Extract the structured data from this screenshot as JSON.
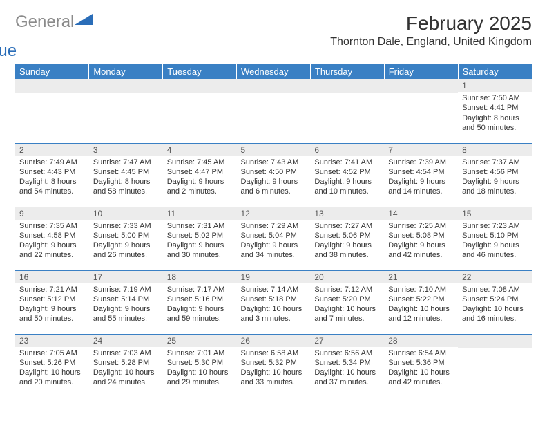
{
  "logo": {
    "general": "General",
    "blue": "Blue"
  },
  "title": "February 2025",
  "location": "Thornton Dale, England, United Kingdom",
  "colors": {
    "header_bg": "#3a80c4",
    "header_text": "#ffffff",
    "daynum_bg": "#ececec",
    "border": "#3a80c4",
    "logo_gray": "#8a8a8a",
    "logo_blue": "#2a6db8"
  },
  "day_headers": [
    "Sunday",
    "Monday",
    "Tuesday",
    "Wednesday",
    "Thursday",
    "Friday",
    "Saturday"
  ],
  "weeks": [
    [
      null,
      null,
      null,
      null,
      null,
      null,
      {
        "n": "1",
        "sr": "Sunrise: 7:50 AM",
        "ss": "Sunset: 4:41 PM",
        "d1": "Daylight: 8 hours",
        "d2": "and 50 minutes."
      }
    ],
    [
      {
        "n": "2",
        "sr": "Sunrise: 7:49 AM",
        "ss": "Sunset: 4:43 PM",
        "d1": "Daylight: 8 hours",
        "d2": "and 54 minutes."
      },
      {
        "n": "3",
        "sr": "Sunrise: 7:47 AM",
        "ss": "Sunset: 4:45 PM",
        "d1": "Daylight: 8 hours",
        "d2": "and 58 minutes."
      },
      {
        "n": "4",
        "sr": "Sunrise: 7:45 AM",
        "ss": "Sunset: 4:47 PM",
        "d1": "Daylight: 9 hours",
        "d2": "and 2 minutes."
      },
      {
        "n": "5",
        "sr": "Sunrise: 7:43 AM",
        "ss": "Sunset: 4:50 PM",
        "d1": "Daylight: 9 hours",
        "d2": "and 6 minutes."
      },
      {
        "n": "6",
        "sr": "Sunrise: 7:41 AM",
        "ss": "Sunset: 4:52 PM",
        "d1": "Daylight: 9 hours",
        "d2": "and 10 minutes."
      },
      {
        "n": "7",
        "sr": "Sunrise: 7:39 AM",
        "ss": "Sunset: 4:54 PM",
        "d1": "Daylight: 9 hours",
        "d2": "and 14 minutes."
      },
      {
        "n": "8",
        "sr": "Sunrise: 7:37 AM",
        "ss": "Sunset: 4:56 PM",
        "d1": "Daylight: 9 hours",
        "d2": "and 18 minutes."
      }
    ],
    [
      {
        "n": "9",
        "sr": "Sunrise: 7:35 AM",
        "ss": "Sunset: 4:58 PM",
        "d1": "Daylight: 9 hours",
        "d2": "and 22 minutes."
      },
      {
        "n": "10",
        "sr": "Sunrise: 7:33 AM",
        "ss": "Sunset: 5:00 PM",
        "d1": "Daylight: 9 hours",
        "d2": "and 26 minutes."
      },
      {
        "n": "11",
        "sr": "Sunrise: 7:31 AM",
        "ss": "Sunset: 5:02 PM",
        "d1": "Daylight: 9 hours",
        "d2": "and 30 minutes."
      },
      {
        "n": "12",
        "sr": "Sunrise: 7:29 AM",
        "ss": "Sunset: 5:04 PM",
        "d1": "Daylight: 9 hours",
        "d2": "and 34 minutes."
      },
      {
        "n": "13",
        "sr": "Sunrise: 7:27 AM",
        "ss": "Sunset: 5:06 PM",
        "d1": "Daylight: 9 hours",
        "d2": "and 38 minutes."
      },
      {
        "n": "14",
        "sr": "Sunrise: 7:25 AM",
        "ss": "Sunset: 5:08 PM",
        "d1": "Daylight: 9 hours",
        "d2": "and 42 minutes."
      },
      {
        "n": "15",
        "sr": "Sunrise: 7:23 AM",
        "ss": "Sunset: 5:10 PM",
        "d1": "Daylight: 9 hours",
        "d2": "and 46 minutes."
      }
    ],
    [
      {
        "n": "16",
        "sr": "Sunrise: 7:21 AM",
        "ss": "Sunset: 5:12 PM",
        "d1": "Daylight: 9 hours",
        "d2": "and 50 minutes."
      },
      {
        "n": "17",
        "sr": "Sunrise: 7:19 AM",
        "ss": "Sunset: 5:14 PM",
        "d1": "Daylight: 9 hours",
        "d2": "and 55 minutes."
      },
      {
        "n": "18",
        "sr": "Sunrise: 7:17 AM",
        "ss": "Sunset: 5:16 PM",
        "d1": "Daylight: 9 hours",
        "d2": "and 59 minutes."
      },
      {
        "n": "19",
        "sr": "Sunrise: 7:14 AM",
        "ss": "Sunset: 5:18 PM",
        "d1": "Daylight: 10 hours",
        "d2": "and 3 minutes."
      },
      {
        "n": "20",
        "sr": "Sunrise: 7:12 AM",
        "ss": "Sunset: 5:20 PM",
        "d1": "Daylight: 10 hours",
        "d2": "and 7 minutes."
      },
      {
        "n": "21",
        "sr": "Sunrise: 7:10 AM",
        "ss": "Sunset: 5:22 PM",
        "d1": "Daylight: 10 hours",
        "d2": "and 12 minutes."
      },
      {
        "n": "22",
        "sr": "Sunrise: 7:08 AM",
        "ss": "Sunset: 5:24 PM",
        "d1": "Daylight: 10 hours",
        "d2": "and 16 minutes."
      }
    ],
    [
      {
        "n": "23",
        "sr": "Sunrise: 7:05 AM",
        "ss": "Sunset: 5:26 PM",
        "d1": "Daylight: 10 hours",
        "d2": "and 20 minutes."
      },
      {
        "n": "24",
        "sr": "Sunrise: 7:03 AM",
        "ss": "Sunset: 5:28 PM",
        "d1": "Daylight: 10 hours",
        "d2": "and 24 minutes."
      },
      {
        "n": "25",
        "sr": "Sunrise: 7:01 AM",
        "ss": "Sunset: 5:30 PM",
        "d1": "Daylight: 10 hours",
        "d2": "and 29 minutes."
      },
      {
        "n": "26",
        "sr": "Sunrise: 6:58 AM",
        "ss": "Sunset: 5:32 PM",
        "d1": "Daylight: 10 hours",
        "d2": "and 33 minutes."
      },
      {
        "n": "27",
        "sr": "Sunrise: 6:56 AM",
        "ss": "Sunset: 5:34 PM",
        "d1": "Daylight: 10 hours",
        "d2": "and 37 minutes."
      },
      {
        "n": "28",
        "sr": "Sunrise: 6:54 AM",
        "ss": "Sunset: 5:36 PM",
        "d1": "Daylight: 10 hours",
        "d2": "and 42 minutes."
      },
      null
    ]
  ]
}
